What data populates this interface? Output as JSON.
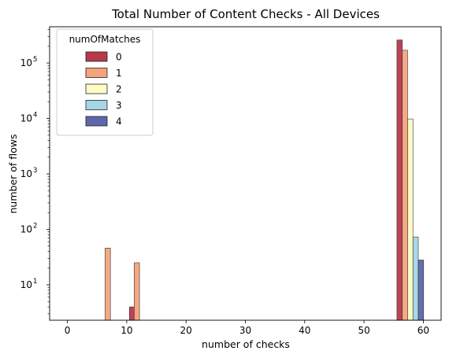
{
  "chart_data": {
    "type": "bar",
    "title": "Total Number of Content Checks - All Devices",
    "xlabel": "number of checks",
    "ylabel": "number of flows",
    "xlim": [
      -3,
      63
    ],
    "xticks": [
      0,
      10,
      20,
      30,
      40,
      50,
      60
    ],
    "ylim": [
      2.3,
      450000
    ],
    "yscale": "log",
    "yticks": [
      {
        "value": 10,
        "base": "10",
        "exp": "1"
      },
      {
        "value": 100,
        "base": "10",
        "exp": "2"
      },
      {
        "value": 1000,
        "base": "10",
        "exp": "3"
      },
      {
        "value": 10000,
        "base": "10",
        "exp": "4"
      },
      {
        "value": 100000,
        "base": "10",
        "exp": "5"
      }
    ],
    "bar_width": 0.9,
    "legend": {
      "title": "numOfMatches",
      "position": "top-left"
    },
    "series": [
      {
        "name": "0",
        "color": "#b8384c",
        "bars": [
          {
            "x": 10.9,
            "y": 4
          },
          {
            "x": 56,
            "y": 260000
          }
        ]
      },
      {
        "name": "1",
        "color": "#f4a37c",
        "bars": [
          {
            "x": 6.8,
            "y": 46
          },
          {
            "x": 11.7,
            "y": 25
          },
          {
            "x": 56.9,
            "y": 170000
          }
        ]
      },
      {
        "name": "2",
        "color": "#fdfcc4",
        "bars": [
          {
            "x": 57.8,
            "y": 9800
          }
        ]
      },
      {
        "name": "3",
        "color": "#a5d5e6",
        "bars": [
          {
            "x": 58.7,
            "y": 73
          }
        ]
      },
      {
        "name": "4",
        "color": "#5d67ab",
        "bars": [
          {
            "x": 59.6,
            "y": 28
          }
        ]
      }
    ]
  }
}
